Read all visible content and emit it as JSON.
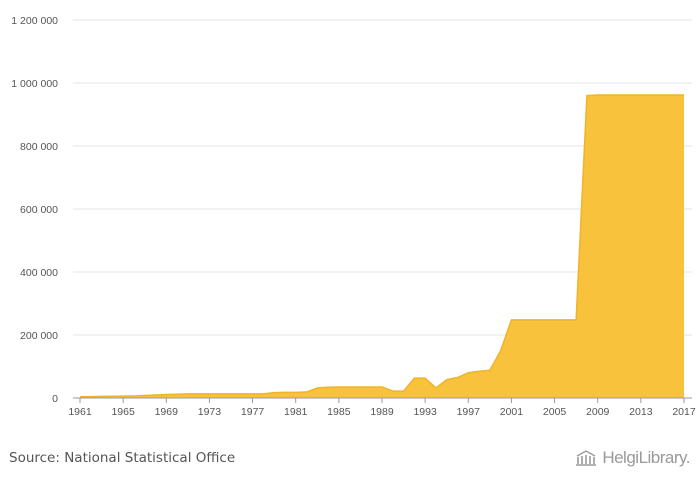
{
  "chart_data": {
    "type": "area",
    "x": [
      1961,
      1962,
      1963,
      1964,
      1965,
      1966,
      1967,
      1968,
      1969,
      1970,
      1971,
      1972,
      1973,
      1974,
      1975,
      1976,
      1977,
      1978,
      1979,
      1980,
      1981,
      1982,
      1983,
      1984,
      1985,
      1986,
      1987,
      1988,
      1989,
      1990,
      1991,
      1992,
      1993,
      1994,
      1995,
      1996,
      1997,
      1998,
      1999,
      2000,
      2001,
      2002,
      2003,
      2004,
      2005,
      2006,
      2007,
      2008,
      2009,
      2010,
      2011,
      2012,
      2013,
      2014,
      2015,
      2016,
      2017
    ],
    "values": [
      4000,
      4500,
      5000,
      5500,
      6000,
      6500,
      8000,
      9500,
      11000,
      12000,
      13000,
      13000,
      13000,
      13000,
      13000,
      13000,
      13000,
      13000,
      17000,
      18000,
      18000,
      19000,
      32000,
      34000,
      35000,
      35000,
      35000,
      35000,
      35000,
      22000,
      22000,
      63000,
      63000,
      32000,
      58000,
      65000,
      80000,
      85000,
      88000,
      150000,
      248000,
      248000,
      248000,
      248000,
      248000,
      248000,
      248000,
      960000,
      962000,
      962000,
      962000,
      962000,
      962000,
      962000,
      962000,
      962000,
      962000
    ],
    "xticks": [
      "1961",
      "1965",
      "1969",
      "1973",
      "1977",
      "1981",
      "1985",
      "1989",
      "1993",
      "1997",
      "2001",
      "2005",
      "2009",
      "2013",
      "2017"
    ],
    "yticks": [
      "0",
      "200 000",
      "400 000",
      "600 000",
      "800 000",
      "1 000 000",
      "1 200 000"
    ],
    "ylim": [
      0,
      1200000
    ],
    "xlim": [
      1961,
      2017
    ],
    "grid": true,
    "fill_color": "#f9c23c",
    "line_color": "#f0b32a",
    "grid_color": "#e6e6e6",
    "axis_color": "#9a9a9a"
  },
  "footer": {
    "source": "Source: National Statistical Office",
    "brand": "HelgiLibrary."
  }
}
